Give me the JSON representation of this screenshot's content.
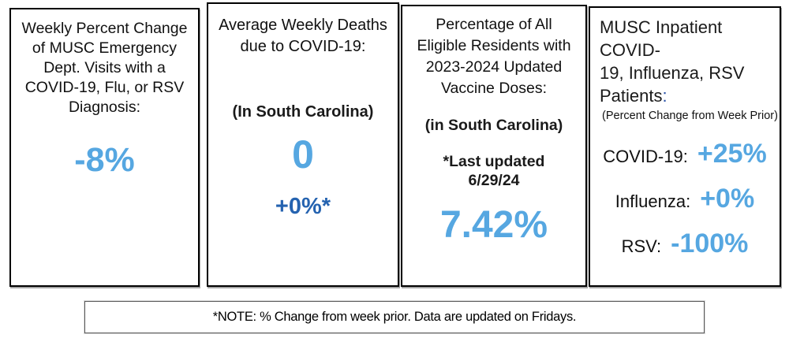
{
  "colors": {
    "value_blue": "#56a7e1",
    "change_dark_blue": "#2563b0",
    "colon_navy_blue": "#2a52a8",
    "text_black": "#111111",
    "panel_border": "#000000"
  },
  "panels": {
    "ed_visits": {
      "title": "Weekly Percent Change\nof MUSC Emergency\nDept. Visits with a\nCOVID-19, Flu, or RSV\nDiagnosis:",
      "value": "-8%"
    },
    "deaths": {
      "title": "Average Weekly Deaths\ndue to COVID-19:",
      "location": "(In South Carolina)",
      "value": "0",
      "change": "+0%*"
    },
    "vaccine": {
      "title": "Percentage of All\nEligible Residents with\n2023-2024 Updated\nVaccine Doses:",
      "location": "(in South Carolina)",
      "updated": "*Last updated\n6/29/24",
      "value": "7.42%"
    },
    "inpatient": {
      "title": "MUSC Inpatient COVID-\n19, Influenza, RSV\nPatients",
      "title_colon": ":",
      "subtitle": "(Percent Change from Week Prior)",
      "rows": [
        {
          "label": "COVID-19:",
          "value": "+25%"
        },
        {
          "label": "Influenza:",
          "value": "+0%"
        },
        {
          "label": "RSV:",
          "value": "-100%"
        }
      ]
    }
  },
  "note": "*NOTE: % Change from week prior. Data are updated on Fridays."
}
